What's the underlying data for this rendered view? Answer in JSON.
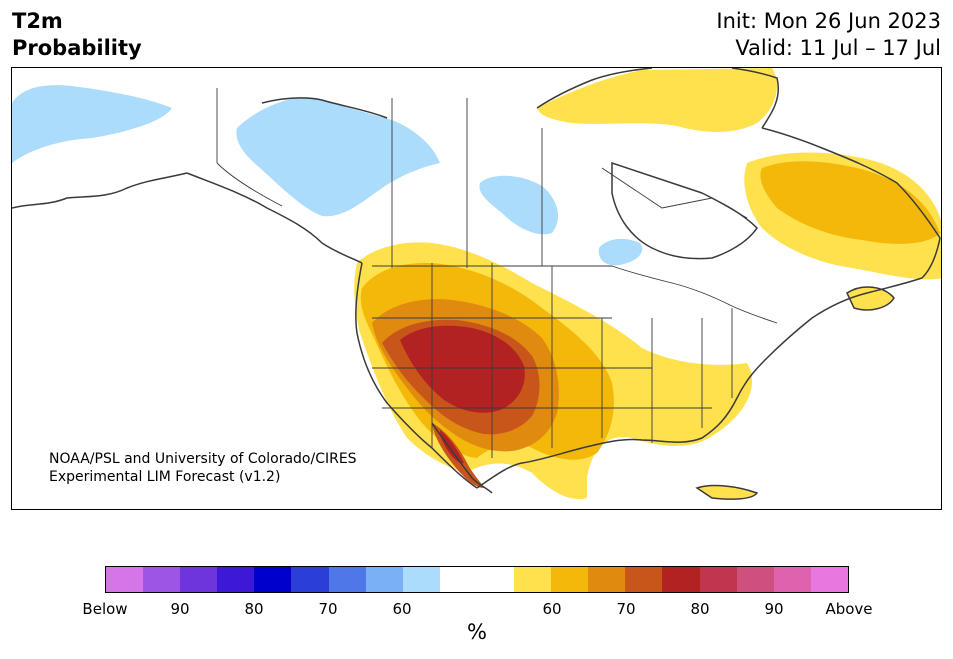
{
  "title": {
    "line1": "T2m",
    "line2": "Probability"
  },
  "init": {
    "line1": "Init: Mon 26 Jun 2023",
    "line2": "Valid: 11 Jul – 17 Jul"
  },
  "credit": {
    "line1": "NOAA/PSL and University of Colorado/CIRES",
    "line2": "Experimental LIM Forecast (v1.2)"
  },
  "colorbar": {
    "colors": [
      "#d675e8",
      "#9d55e6",
      "#6e35dc",
      "#3d18d6",
      "#0000cc",
      "#2a3fd8",
      "#5077e8",
      "#7ab0f5",
      "#acdcfb",
      "#ffffff",
      "#ffffff",
      "#ffe14d",
      "#f3b80a",
      "#e08a10",
      "#c8561a",
      "#b32222",
      "#c0364e",
      "#cf4f7e",
      "#de62ae",
      "#e877df"
    ],
    "labels": [
      "Below",
      "90",
      "80",
      "70",
      "60",
      "60",
      "70",
      "80",
      "90",
      "Above"
    ],
    "unit": "%"
  },
  "map": {
    "region": "North America",
    "shading": [
      {
        "area": "Alaska",
        "category": "below 60",
        "color": "#acdcfb"
      },
      {
        "area": "Northwest Territories / Great Slave Lake region",
        "category": "below 60",
        "color": "#acdcfb"
      },
      {
        "area": "Saskatchewan",
        "category": "below 60",
        "color": "#acdcfb"
      },
      {
        "area": "Minnesota / Ontario border",
        "category": "below 60",
        "color": "#acdcfb"
      },
      {
        "area": "Southwest US (Arizona, New Mexico, Utah)",
        "category": "above 80",
        "color": "#b32222"
      },
      {
        "area": "Great Basin / Texas",
        "category": "above 60-70",
        "color": "#f3b80a"
      },
      {
        "area": "Southeast US",
        "category": "above 50-60",
        "color": "#ffe14d"
      },
      {
        "area": "Quebec / Labrador",
        "category": "above 60",
        "color": "#f3b80a"
      },
      {
        "area": "Baffin Island / Hudson Strait",
        "category": "above 50-60",
        "color": "#ffe14d"
      }
    ]
  }
}
